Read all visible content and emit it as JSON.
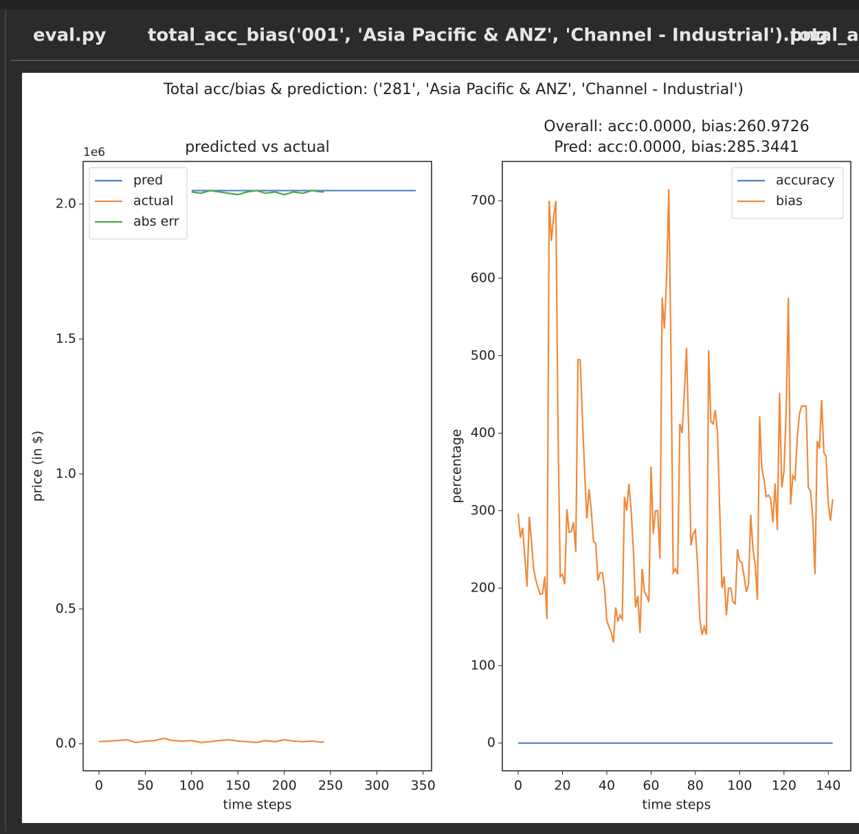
{
  "tabs": [
    "eval.py",
    "total_acc_bias('001', 'Asia Pacific & ANZ', 'Channel - Industrial').png",
    "total_ac"
  ],
  "figure_title": "Total acc/bias & prediction: ('281', 'Asia Pacific & ANZ', 'Channel - Industrial')",
  "chart_data": [
    {
      "type": "line",
      "title": "predicted vs actual",
      "x_label": "time steps",
      "y_label": "price (in $)",
      "y_offset_label": "1e6",
      "xlim": [
        -17.1,
        359.1
      ],
      "ylim": [
        -0.1,
        2.158
      ],
      "xticks": [
        0,
        50,
        100,
        150,
        200,
        250,
        300,
        350
      ],
      "yticks": [
        {
          "value": 0,
          "label": "0.0"
        },
        0.5,
        {
          "value": 1,
          "label": "1.0"
        },
        1.5,
        {
          "value": 2,
          "label": "2.0"
        }
      ],
      "legend": "upper left",
      "series": [
        {
          "name": "pred",
          "color": "#4f7fbf",
          "x": [
            100,
            342
          ],
          "values": [
            2.05,
            2.05
          ]
        },
        {
          "name": "actual",
          "color": "#f0883a",
          "x": [
            0,
            10,
            20,
            30,
            40,
            50,
            60,
            70,
            80,
            90,
            100,
            110,
            120,
            130,
            140,
            150,
            160,
            170,
            180,
            190,
            200,
            210,
            220,
            230,
            240,
            243
          ],
          "values": [
            0.008,
            0.01,
            0.012,
            0.015,
            0.005,
            0.01,
            0.012,
            0.02,
            0.012,
            0.01,
            0.012,
            0.005,
            0.008,
            0.012,
            0.015,
            0.01,
            0.008,
            0.005,
            0.012,
            0.008,
            0.015,
            0.01,
            0.008,
            0.01,
            0.006,
            0.008
          ]
        },
        {
          "name": "abs err",
          "color": "#4aa84a",
          "x": [
            100,
            110,
            120,
            130,
            140,
            150,
            160,
            170,
            180,
            190,
            200,
            210,
            220,
            230,
            240,
            243
          ],
          "values": [
            2.045,
            2.04,
            2.05,
            2.045,
            2.04,
            2.035,
            2.045,
            2.05,
            2.04,
            2.045,
            2.035,
            2.045,
            2.04,
            2.05,
            2.045,
            2.045
          ]
        }
      ]
    },
    {
      "type": "line",
      "title": [
        "Overall: acc:0.0000, bias:260.9726",
        "Pred: acc:0.0000, bias:285.3441"
      ],
      "x_label": "time steps",
      "y_label": "percentage",
      "xlim": [
        -7.15,
        150.15
      ],
      "ylim": [
        -35.75,
        750.75
      ],
      "xticks": [
        0,
        20,
        40,
        60,
        80,
        100,
        120,
        140
      ],
      "yticks": [
        0,
        100,
        200,
        300,
        400,
        500,
        600,
        700
      ],
      "legend": "upper right",
      "x": [
        0,
        1,
        2,
        3,
        4,
        5,
        6,
        7,
        8,
        9,
        10,
        11,
        12,
        13,
        14,
        15,
        16,
        17,
        18,
        19,
        20,
        21,
        22,
        23,
        24,
        25,
        26,
        27,
        28,
        29,
        30,
        31,
        32,
        33,
        34,
        35,
        36,
        37,
        38,
        39,
        40,
        41,
        42,
        43,
        44,
        45,
        46,
        47,
        48,
        49,
        50,
        51,
        52,
        53,
        54,
        55,
        56,
        57,
        58,
        59,
        60,
        61,
        62,
        63,
        64,
        65,
        66,
        67,
        68,
        69,
        70,
        71,
        72,
        73,
        74,
        75,
        76,
        77,
        78,
        79,
        80,
        81,
        82,
        83,
        84,
        85,
        86,
        87,
        88,
        89,
        90,
        91,
        92,
        93,
        94,
        95,
        96,
        97,
        98,
        99,
        100,
        101,
        102,
        103,
        104,
        105,
        106,
        107,
        108,
        109,
        110,
        111,
        112,
        113,
        114,
        115,
        116,
        117,
        118,
        119,
        120,
        121,
        122,
        123,
        124,
        125,
        126,
        127,
        128,
        129,
        130,
        131,
        132,
        133,
        134,
        135,
        136,
        137,
        138,
        139,
        140,
        141,
        142
      ],
      "series": [
        {
          "name": "accuracy",
          "color": "#4f7fbf",
          "values": [
            0,
            0,
            0,
            0,
            0,
            0,
            0,
            0,
            0,
            0,
            0,
            0,
            0,
            0,
            0,
            0,
            0,
            0,
            0,
            0,
            0,
            0,
            0,
            0,
            0,
            0,
            0,
            0,
            0,
            0,
            0,
            0,
            0,
            0,
            0,
            0,
            0,
            0,
            0,
            0,
            0,
            0,
            0,
            0,
            0,
            0,
            0,
            0,
            0,
            0,
            0,
            0,
            0,
            0,
            0,
            0,
            0,
            0,
            0,
            0,
            0,
            0,
            0,
            0,
            0,
            0,
            0,
            0,
            0,
            0,
            0,
            0,
            0,
            0,
            0,
            0,
            0,
            0,
            0,
            0,
            0,
            0,
            0,
            0,
            0,
            0,
            0,
            0,
            0,
            0,
            0,
            0,
            0,
            0,
            0,
            0,
            0,
            0,
            0,
            0,
            0,
            0,
            0,
            0,
            0,
            0,
            0,
            0,
            0,
            0,
            0,
            0,
            0,
            0,
            0,
            0,
            0,
            0,
            0,
            0,
            0,
            0,
            0,
            0,
            0,
            0,
            0,
            0,
            0,
            0,
            0,
            0,
            0,
            0,
            0,
            0,
            0,
            0,
            0,
            0,
            0,
            0,
            0
          ]
        },
        {
          "name": "bias",
          "color": "#f0883a",
          "values": [
            296,
            265,
            278,
            240,
            202,
            292,
            260,
            225,
            210,
            200,
            192,
            193,
            215,
            160,
            700,
            648,
            680,
            700,
            400,
            215,
            218,
            205,
            302,
            272,
            273,
            285,
            247,
            495,
            495,
            420,
            350,
            290,
            328,
            300,
            260,
            258,
            210,
            220,
            220,
            200,
            158,
            150,
            143,
            130,
            175,
            157,
            165,
            160,
            318,
            300,
            335,
            300,
            250,
            175,
            190,
            142,
            225,
            195,
            190,
            182,
            357,
            270,
            300,
            300,
            238,
            575,
            535,
            600,
            715,
            500,
            220,
            225,
            218,
            412,
            400,
            450,
            510,
            400,
            255,
            270,
            275,
            230,
            160,
            140,
            150,
            140,
            507,
            415,
            412,
            430,
            400,
            300,
            200,
            215,
            165,
            200,
            200,
            182,
            180,
            250,
            235,
            233,
            215,
            195,
            205,
            295,
            250,
            230,
            185,
            422,
            355,
            340,
            318,
            320,
            315,
            285,
            335,
            275,
            452,
            330,
            350,
            430,
            575,
            308,
            345,
            340,
            395,
            425,
            435,
            435,
            435,
            330,
            325,
            290,
            218,
            390,
            380,
            443,
            375,
            370,
            310,
            287,
            315
          ]
        }
      ]
    }
  ]
}
